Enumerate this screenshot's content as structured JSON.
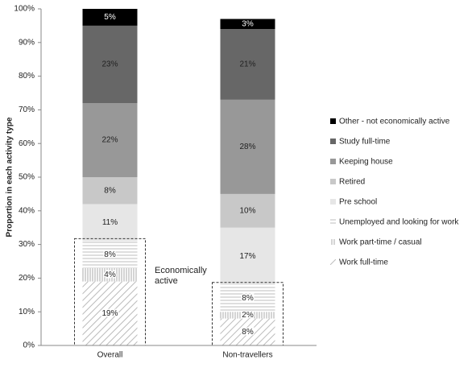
{
  "chart_data": {
    "type": "stacked-bar",
    "ylabel": "Proportion in each activity type",
    "categories": [
      "Overall",
      "Non-travellers"
    ],
    "series": [
      {
        "name": "Work full-time",
        "color": "#b0b0b0",
        "pattern": "diagonal",
        "values": [
          19,
          8
        ],
        "value_labels": [
          "19%",
          "8%"
        ]
      },
      {
        "name": "Work part-time / casual",
        "color": "#b0b0b0",
        "pattern": "vertical",
        "values": [
          4,
          2
        ],
        "value_labels": [
          "4%",
          "2%"
        ]
      },
      {
        "name": "Unemployed and looking for work",
        "color": "#c0c0c0",
        "pattern": "horizontal",
        "values": [
          8,
          8
        ],
        "value_labels": [
          "8%",
          "8%"
        ]
      },
      {
        "name": "Pre school",
        "color": "#e6e6e6",
        "values": [
          11,
          17
        ],
        "value_labels": [
          "11%",
          "17%"
        ]
      },
      {
        "name": "Retired",
        "color": "#c8c8c8",
        "values": [
          8,
          10
        ],
        "value_labels": [
          "8%",
          "10%"
        ]
      },
      {
        "name": "Keeping house",
        "color": "#989898",
        "values": [
          22,
          28
        ],
        "value_labels": [
          "22%",
          "28%"
        ]
      },
      {
        "name": "Study full-time",
        "color": "#676767",
        "values": [
          23,
          21
        ],
        "value_labels": [
          "23%",
          "21%"
        ]
      },
      {
        "name": "Other - not economically active",
        "color": "#000000",
        "values": [
          5,
          3
        ],
        "value_labels": [
          "5%",
          "3%"
        ]
      }
    ],
    "annotation": "Economically active",
    "ylim": [
      0,
      100
    ],
    "yticks": [
      {
        "value": 0,
        "label": "0%"
      },
      {
        "value": 10,
        "label": "10%"
      },
      {
        "value": 20,
        "label": "20%"
      },
      {
        "value": 30,
        "label": "30%"
      },
      {
        "value": 40,
        "label": "40%"
      },
      {
        "value": 50,
        "label": "50%"
      },
      {
        "value": 60,
        "label": "60%"
      },
      {
        "value": 70,
        "label": "70%"
      },
      {
        "value": 80,
        "label": "80%"
      },
      {
        "value": 90,
        "label": "90%"
      },
      {
        "value": 100,
        "label": "100%"
      }
    ],
    "legend": "right"
  }
}
